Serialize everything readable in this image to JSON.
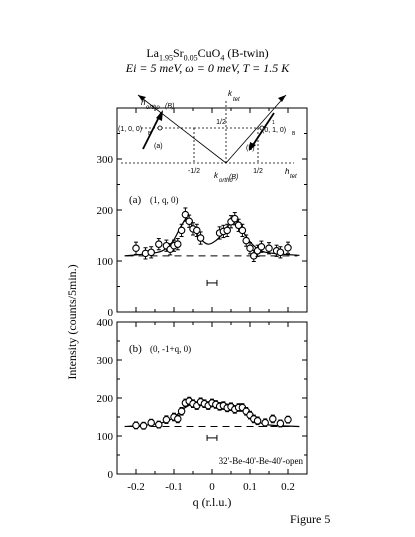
{
  "title": {
    "main": "La1.95Sr0.05CuO4 (B-twin)",
    "main_parts": [
      "La",
      "1.95",
      "Sr",
      "0.05",
      "CuO",
      "4",
      " (B-twin)"
    ],
    "conditions": "Ei = 5 meV, ω = 0 meV, T = 1.5 K"
  },
  "figure_caption": "Figure 5",
  "chart_data": [
    {
      "type": "scatter",
      "panel_label": "(a)",
      "scan_label": "(1, q, 0)",
      "xlabel": "q (r.l.u.)",
      "ylabel": "Intensity (counts/5min.)",
      "xlim": [
        -0.25,
        0.25
      ],
      "ylim": [
        0,
        400
      ],
      "yticks": [
        0,
        100,
        200,
        300,
        400
      ],
      "xticks": [
        -0.2,
        -0.1,
        0,
        0.1,
        0.2
      ],
      "background": 110,
      "resolution_bar": {
        "q": [
          -0.013,
          0.013
        ],
        "y": 57
      },
      "series": [
        {
          "points": [
            {
              "x": -0.2,
              "y": 125,
              "err": 12
            },
            {
              "x": -0.175,
              "y": 115,
              "err": 11
            },
            {
              "x": -0.16,
              "y": 117,
              "err": 11
            },
            {
              "x": -0.14,
              "y": 133,
              "err": 11
            },
            {
              "x": -0.12,
              "y": 130,
              "err": 11
            },
            {
              "x": -0.11,
              "y": 123,
              "err": 11
            },
            {
              "x": -0.1,
              "y": 130,
              "err": 11
            },
            {
              "x": -0.09,
              "y": 133,
              "err": 11
            },
            {
              "x": -0.08,
              "y": 160,
              "err": 12
            },
            {
              "x": -0.07,
              "y": 191,
              "err": 13
            },
            {
              "x": -0.06,
              "y": 178,
              "err": 12
            },
            {
              "x": -0.05,
              "y": 163,
              "err": 12
            },
            {
              "x": -0.04,
              "y": 160,
              "err": 12
            },
            {
              "x": -0.03,
              "y": 145,
              "err": 12
            },
            {
              "x": 0.02,
              "y": 155,
              "err": 12
            },
            {
              "x": 0.03,
              "y": 158,
              "err": 12
            },
            {
              "x": 0.04,
              "y": 160,
              "err": 12
            },
            {
              "x": 0.05,
              "y": 177,
              "err": 12
            },
            {
              "x": 0.06,
              "y": 183,
              "err": 12
            },
            {
              "x": 0.07,
              "y": 170,
              "err": 12
            },
            {
              "x": 0.08,
              "y": 160,
              "err": 12
            },
            {
              "x": 0.09,
              "y": 140,
              "err": 11
            },
            {
              "x": 0.1,
              "y": 125,
              "err": 11
            },
            {
              "x": 0.11,
              "y": 110,
              "err": 11
            },
            {
              "x": 0.12,
              "y": 120,
              "err": 11
            },
            {
              "x": 0.13,
              "y": 128,
              "err": 11
            },
            {
              "x": 0.15,
              "y": 125,
              "err": 11
            },
            {
              "x": 0.17,
              "y": 120,
              "err": 11
            },
            {
              "x": 0.18,
              "y": 117,
              "err": 11
            },
            {
              "x": 0.2,
              "y": 126,
              "err": 11
            }
          ],
          "fit": [
            {
              "x": -0.23,
              "y": 110
            },
            {
              "x": -0.15,
              "y": 116
            },
            {
              "x": -0.12,
              "y": 125
            },
            {
              "x": -0.1,
              "y": 142
            },
            {
              "x": -0.08,
              "y": 170
            },
            {
              "x": -0.065,
              "y": 183
            },
            {
              "x": -0.05,
              "y": 165
            },
            {
              "x": -0.03,
              "y": 143
            },
            {
              "x": -0.01,
              "y": 133
            },
            {
              "x": 0.01,
              "y": 140
            },
            {
              "x": 0.03,
              "y": 155
            },
            {
              "x": 0.05,
              "y": 175
            },
            {
              "x": 0.065,
              "y": 180
            },
            {
              "x": 0.08,
              "y": 160
            },
            {
              "x": 0.1,
              "y": 138
            },
            {
              "x": 0.12,
              "y": 124
            },
            {
              "x": 0.15,
              "y": 116
            },
            {
              "x": 0.23,
              "y": 111
            }
          ]
        }
      ]
    },
    {
      "type": "scatter",
      "panel_label": "(b)",
      "scan_label": "(0, -1+q, 0)",
      "xlabel": "q (r.l.u.)",
      "ylabel": "Intensity (counts/5min.)",
      "xlim": [
        -0.25,
        0.25
      ],
      "ylim": [
        0,
        400
      ],
      "yticks": [
        0,
        100,
        200,
        300,
        400
      ],
      "xticks": [
        -0.2,
        -0.1,
        0,
        0.1,
        0.2
      ],
      "background": 125,
      "resolution_bar": {
        "q": [
          -0.013,
          0.013
        ],
        "y": 95
      },
      "collimation": "32'-Be-40'-Be-40'-open",
      "series": [
        {
          "points": [
            {
              "x": -0.2,
              "y": 128,
              "err": 9
            },
            {
              "x": -0.18,
              "y": 127,
              "err": 9
            },
            {
              "x": -0.16,
              "y": 135,
              "err": 9
            },
            {
              "x": -0.14,
              "y": 130,
              "err": 9
            },
            {
              "x": -0.12,
              "y": 143,
              "err": 10
            },
            {
              "x": -0.1,
              "y": 150,
              "err": 10
            },
            {
              "x": -0.09,
              "y": 145,
              "err": 10
            },
            {
              "x": -0.08,
              "y": 165,
              "err": 10
            },
            {
              "x": -0.07,
              "y": 187,
              "err": 10
            },
            {
              "x": -0.06,
              "y": 192,
              "err": 10
            },
            {
              "x": -0.05,
              "y": 185,
              "err": 10
            },
            {
              "x": -0.04,
              "y": 180,
              "err": 10
            },
            {
              "x": -0.03,
              "y": 190,
              "err": 10
            },
            {
              "x": -0.02,
              "y": 185,
              "err": 10
            },
            {
              "x": -0.01,
              "y": 180,
              "err": 10
            },
            {
              "x": 0.0,
              "y": 187,
              "err": 10
            },
            {
              "x": 0.01,
              "y": 183,
              "err": 10
            },
            {
              "x": 0.02,
              "y": 178,
              "err": 10
            },
            {
              "x": 0.03,
              "y": 180,
              "err": 10
            },
            {
              "x": 0.04,
              "y": 174,
              "err": 10
            },
            {
              "x": 0.05,
              "y": 177,
              "err": 10
            },
            {
              "x": 0.06,
              "y": 170,
              "err": 10
            },
            {
              "x": 0.07,
              "y": 175,
              "err": 10
            },
            {
              "x": 0.08,
              "y": 175,
              "err": 10
            },
            {
              "x": 0.09,
              "y": 165,
              "err": 10
            },
            {
              "x": 0.1,
              "y": 155,
              "err": 10
            },
            {
              "x": 0.11,
              "y": 145,
              "err": 10
            },
            {
              "x": 0.12,
              "y": 140,
              "err": 10
            },
            {
              "x": 0.14,
              "y": 135,
              "err": 10
            },
            {
              "x": 0.16,
              "y": 145,
              "err": 10
            },
            {
              "x": 0.18,
              "y": 133,
              "err": 9
            },
            {
              "x": 0.2,
              "y": 143,
              "err": 9
            }
          ],
          "fit": [
            {
              "x": -0.23,
              "y": 125
            },
            {
              "x": -0.18,
              "y": 128
            },
            {
              "x": -0.14,
              "y": 133
            },
            {
              "x": -0.11,
              "y": 143
            },
            {
              "x": -0.09,
              "y": 158
            },
            {
              "x": -0.07,
              "y": 175
            },
            {
              "x": -0.05,
              "y": 184
            },
            {
              "x": -0.03,
              "y": 184
            },
            {
              "x": 0.0,
              "y": 181
            },
            {
              "x": 0.03,
              "y": 178
            },
            {
              "x": 0.06,
              "y": 174
            },
            {
              "x": 0.08,
              "y": 167
            },
            {
              "x": 0.1,
              "y": 152
            },
            {
              "x": 0.12,
              "y": 138
            },
            {
              "x": 0.15,
              "y": 129
            },
            {
              "x": 0.23,
              "y": 125
            }
          ]
        }
      ]
    }
  ],
  "inset": {
    "labels": {
      "k_tet": "k",
      "k_tet_sub": "tet",
      "h_ortho_B": "h",
      "h_ortho_B_sub": "ortho",
      "h_ortho_B_suffix": "(B)",
      "k_ortho_B": "k",
      "k_ortho_B_sub": "ortho",
      "k_ortho_B_suffix": "(B)",
      "h_tet": "h",
      "h_tet_sub": "tet",
      "point_a": "(1, 0, 0)",
      "point_a_sub": "B",
      "point_b": "(0, 1, 0)",
      "point_b_bar": "1",
      "point_b_sub": "B",
      "half_top": "1/2",
      "half_left": "-1/2",
      "half_right": "1/2",
      "scan_a": "(a)",
      "scan_b": "(b)"
    }
  }
}
